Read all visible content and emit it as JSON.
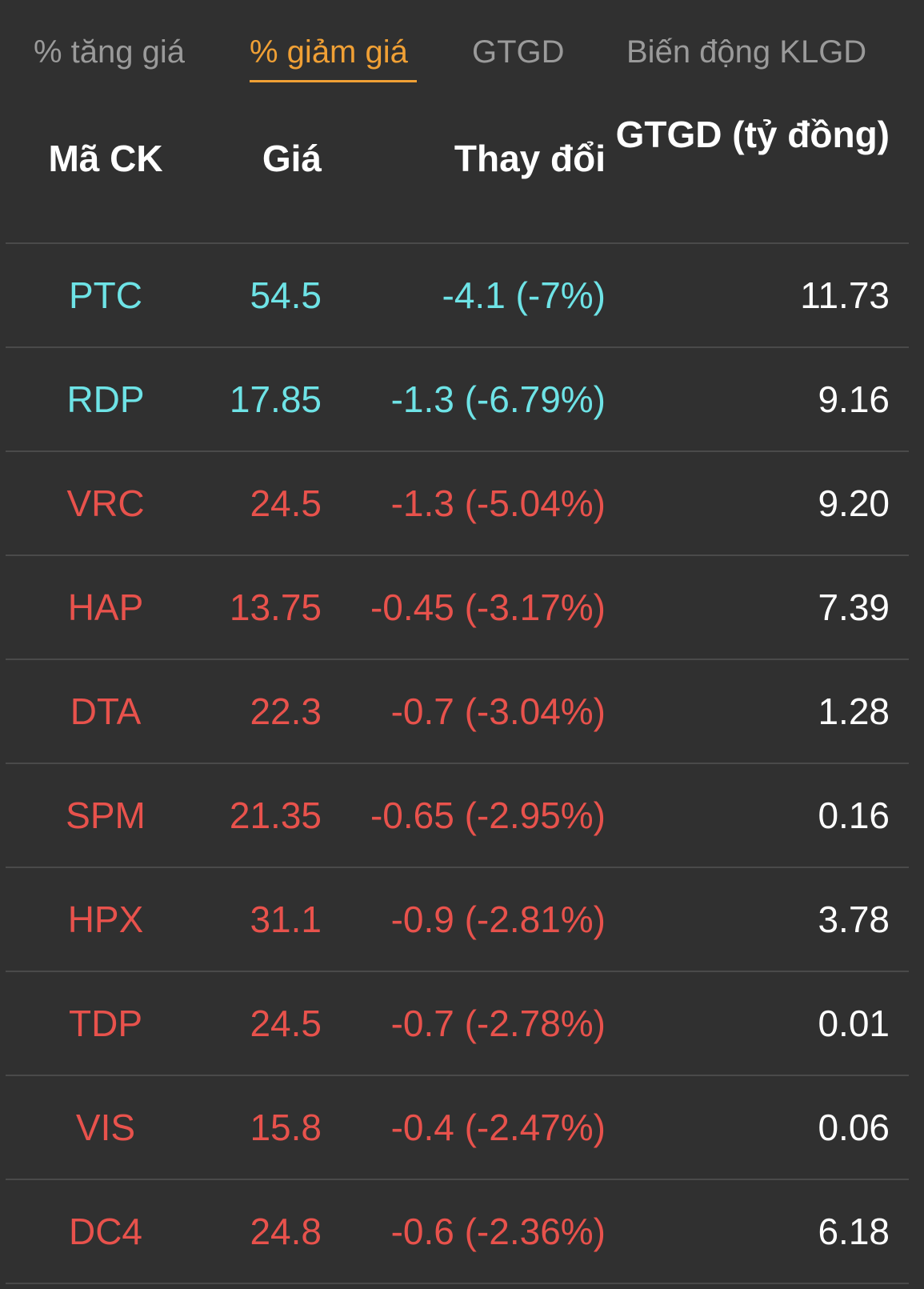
{
  "tabs": [
    {
      "label": "% tăng giá",
      "active": false
    },
    {
      "label": "% giảm giá",
      "active": true
    },
    {
      "label": "GTGD",
      "active": false
    },
    {
      "label": "Biến động KLGD",
      "active": false
    }
  ],
  "colors": {
    "background": "#303030",
    "active_tab": "#f0a035",
    "inactive_tab": "#9a9a9a",
    "floor_price": "#6ee3e6",
    "decrease": "#e8524c",
    "value_text": "#ffffff"
  },
  "table": {
    "headers": {
      "symbol": "Mã CK",
      "price": "Giá",
      "change": "Thay đổi",
      "value": "GTGD (tỷ đồng)"
    },
    "rows": [
      {
        "symbol": "PTC",
        "price": "54.5",
        "change": "-4.1 (-7%)",
        "value": "11.73",
        "status": "floor"
      },
      {
        "symbol": "RDP",
        "price": "17.85",
        "change": "-1.3 (-6.79%)",
        "value": "9.16",
        "status": "floor"
      },
      {
        "symbol": "VRC",
        "price": "24.5",
        "change": "-1.3 (-5.04%)",
        "value": "9.20",
        "status": "down"
      },
      {
        "symbol": "HAP",
        "price": "13.75",
        "change": "-0.45 (-3.17%)",
        "value": "7.39",
        "status": "down"
      },
      {
        "symbol": "DTA",
        "price": "22.3",
        "change": "-0.7 (-3.04%)",
        "value": "1.28",
        "status": "down"
      },
      {
        "symbol": "SPM",
        "price": "21.35",
        "change": "-0.65 (-2.95%)",
        "value": "0.16",
        "status": "down"
      },
      {
        "symbol": "HPX",
        "price": "31.1",
        "change": "-0.9 (-2.81%)",
        "value": "3.78",
        "status": "down"
      },
      {
        "symbol": "TDP",
        "price": "24.5",
        "change": "-0.7 (-2.78%)",
        "value": "0.01",
        "status": "down"
      },
      {
        "symbol": "VIS",
        "price": "15.8",
        "change": "-0.4 (-2.47%)",
        "value": "0.06",
        "status": "down"
      },
      {
        "symbol": "DC4",
        "price": "24.8",
        "change": "-0.6 (-2.36%)",
        "value": "6.18",
        "status": "down"
      }
    ]
  }
}
